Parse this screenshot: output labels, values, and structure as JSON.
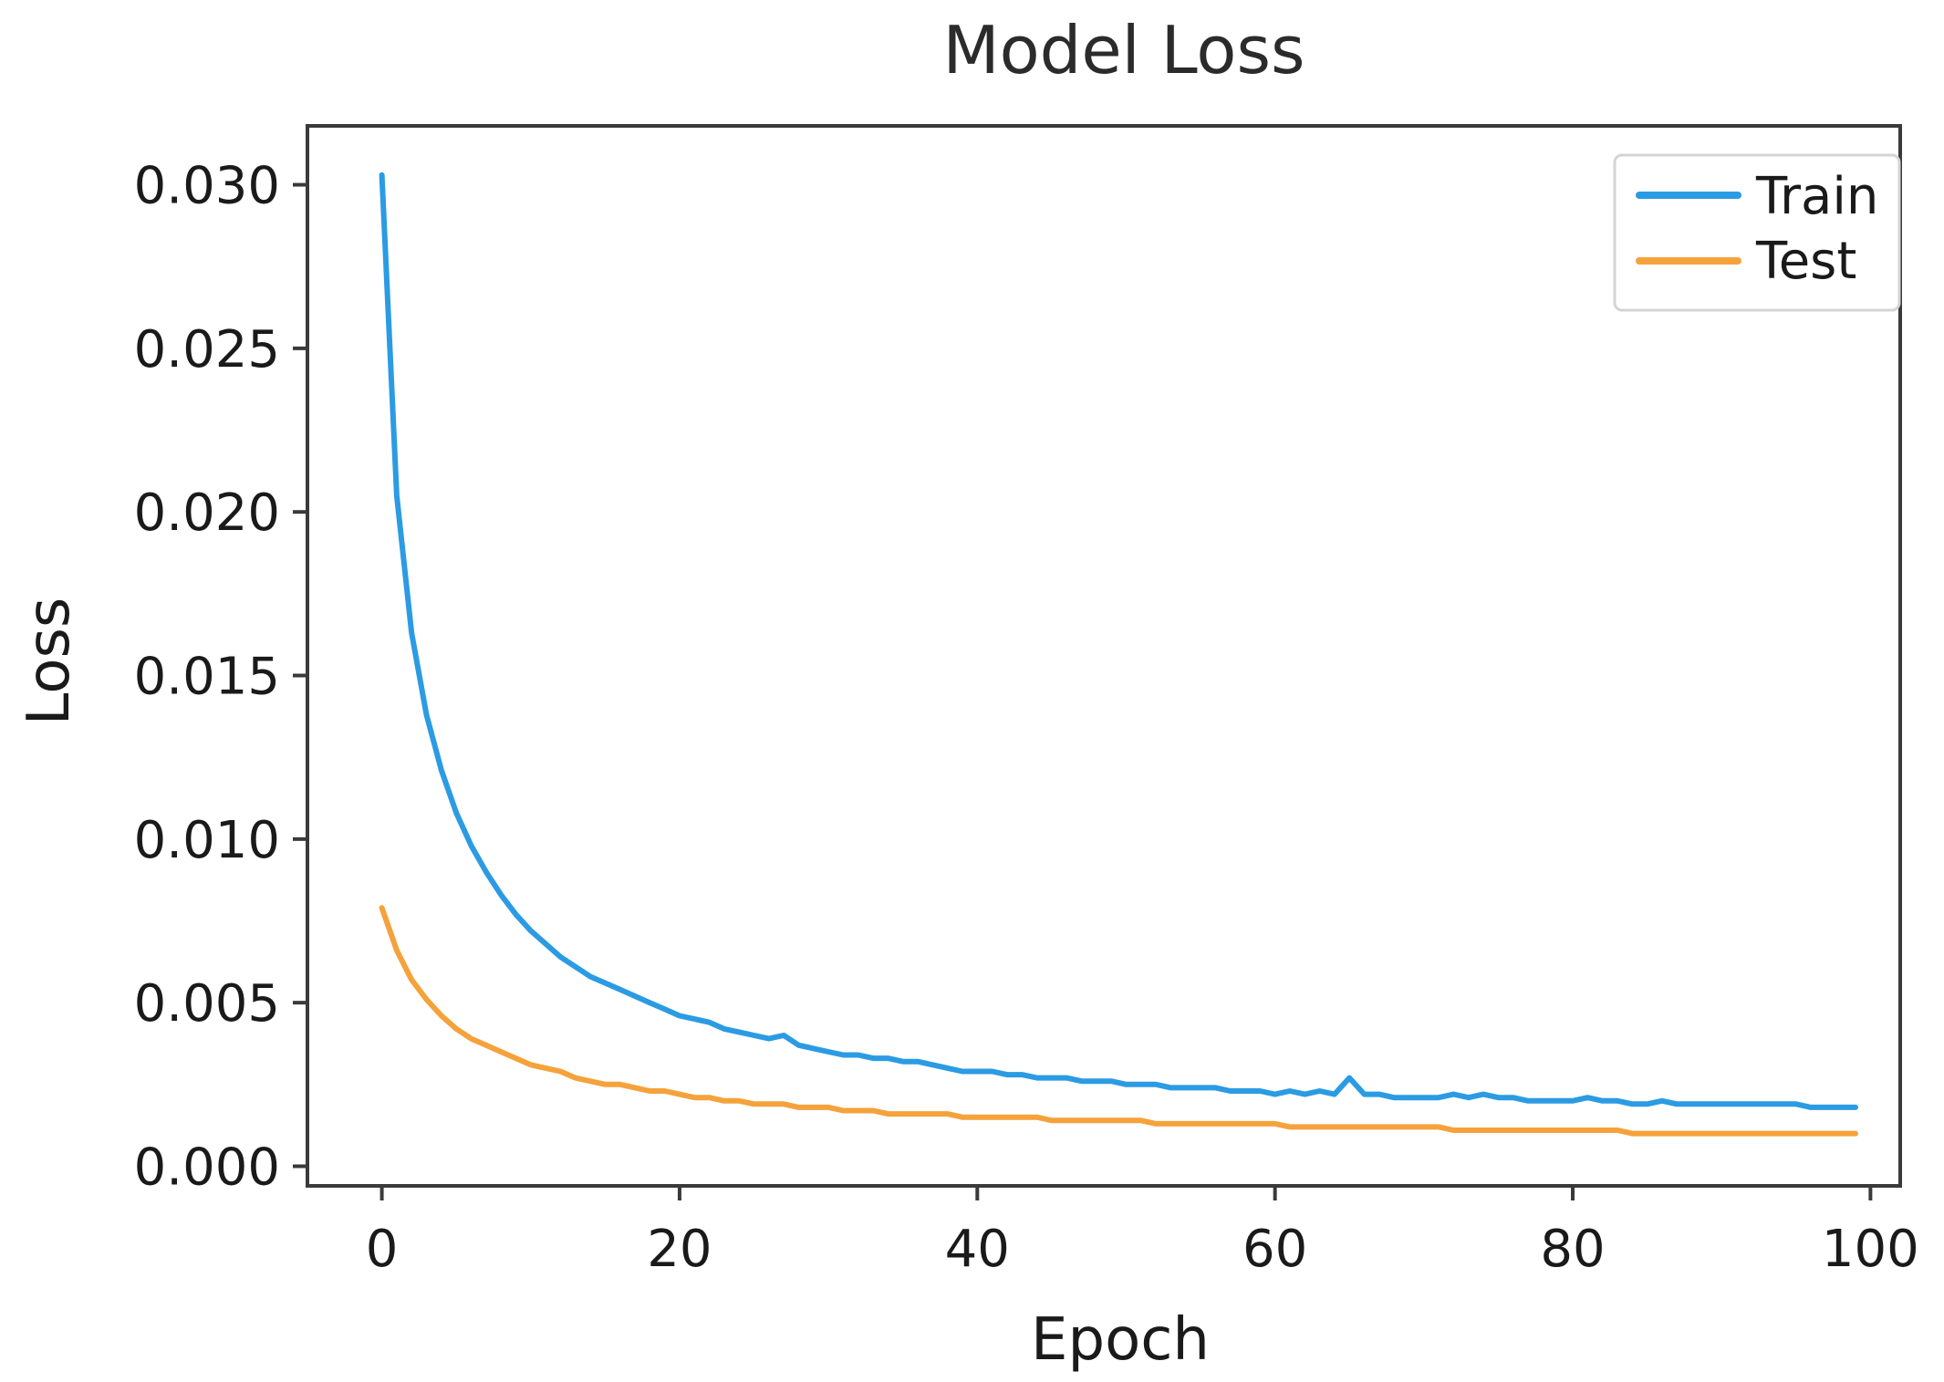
{
  "chart_data": {
    "type": "line",
    "title": "Model Loss",
    "xlabel": "Epoch",
    "ylabel": "Loss",
    "xlim": [
      -5,
      102
    ],
    "ylim": [
      -0.0006,
      0.0318
    ],
    "xticks": [
      0,
      20,
      40,
      60,
      80,
      100
    ],
    "xtick_labels": [
      "0",
      "20",
      "40",
      "60",
      "80",
      "100"
    ],
    "yticks": [
      0.0,
      0.005,
      0.01,
      0.015,
      0.02,
      0.025,
      0.03
    ],
    "ytick_labels": [
      "0.000",
      "0.005",
      "0.010",
      "0.015",
      "0.020",
      "0.025",
      "0.030"
    ],
    "grid": false,
    "legend_position": "top-right",
    "series": [
      {
        "name": "Train",
        "color": "#2b9be3",
        "x": [
          0,
          1,
          2,
          3,
          4,
          5,
          6,
          7,
          8,
          9,
          10,
          11,
          12,
          13,
          14,
          15,
          16,
          17,
          18,
          19,
          20,
          21,
          22,
          23,
          24,
          25,
          26,
          27,
          28,
          29,
          30,
          31,
          32,
          33,
          34,
          35,
          36,
          37,
          38,
          39,
          40,
          41,
          42,
          43,
          44,
          45,
          46,
          47,
          48,
          49,
          50,
          51,
          52,
          53,
          54,
          55,
          56,
          57,
          58,
          59,
          60,
          61,
          62,
          63,
          64,
          65,
          66,
          67,
          68,
          69,
          70,
          71,
          72,
          73,
          74,
          75,
          76,
          77,
          78,
          79,
          80,
          81,
          82,
          83,
          84,
          85,
          86,
          87,
          88,
          89,
          90,
          91,
          92,
          93,
          94,
          95,
          96,
          97,
          98,
          99
        ],
        "y": [
          0.0303,
          0.0205,
          0.0163,
          0.0138,
          0.0121,
          0.0108,
          0.0098,
          0.009,
          0.0083,
          0.0077,
          0.0072,
          0.0068,
          0.0064,
          0.0061,
          0.0058,
          0.0056,
          0.0054,
          0.0052,
          0.005,
          0.0048,
          0.0046,
          0.0045,
          0.0044,
          0.0042,
          0.0041,
          0.004,
          0.0039,
          0.004,
          0.0037,
          0.0036,
          0.0035,
          0.0034,
          0.0034,
          0.0033,
          0.0033,
          0.0032,
          0.0032,
          0.0031,
          0.003,
          0.0029,
          0.0029,
          0.0029,
          0.0028,
          0.0028,
          0.0027,
          0.0027,
          0.0027,
          0.0026,
          0.0026,
          0.0026,
          0.0025,
          0.0025,
          0.0025,
          0.0024,
          0.0024,
          0.0024,
          0.0024,
          0.0023,
          0.0023,
          0.0023,
          0.0022,
          0.0023,
          0.0022,
          0.0023,
          0.0022,
          0.0027,
          0.0022,
          0.0022,
          0.0021,
          0.0021,
          0.0021,
          0.0021,
          0.0022,
          0.0021,
          0.0022,
          0.0021,
          0.0021,
          0.002,
          0.002,
          0.002,
          0.002,
          0.0021,
          0.002,
          0.002,
          0.0019,
          0.0019,
          0.002,
          0.0019,
          0.0019,
          0.0019,
          0.0019,
          0.0019,
          0.0019,
          0.0019,
          0.0019,
          0.0019,
          0.0018,
          0.0018,
          0.0018,
          0.0018
        ]
      },
      {
        "name": "Test",
        "color": "#f5a23c",
        "x": [
          0,
          1,
          2,
          3,
          4,
          5,
          6,
          7,
          8,
          9,
          10,
          11,
          12,
          13,
          14,
          15,
          16,
          17,
          18,
          19,
          20,
          21,
          22,
          23,
          24,
          25,
          26,
          27,
          28,
          29,
          30,
          31,
          32,
          33,
          34,
          35,
          36,
          37,
          38,
          39,
          40,
          41,
          42,
          43,
          44,
          45,
          46,
          47,
          48,
          49,
          50,
          51,
          52,
          53,
          54,
          55,
          56,
          57,
          58,
          59,
          60,
          61,
          62,
          63,
          64,
          65,
          66,
          67,
          68,
          69,
          70,
          71,
          72,
          73,
          74,
          75,
          76,
          77,
          78,
          79,
          80,
          81,
          82,
          83,
          84,
          85,
          86,
          87,
          88,
          89,
          90,
          91,
          92,
          93,
          94,
          95,
          96,
          97,
          98,
          99
        ],
        "y": [
          0.0079,
          0.0066,
          0.0057,
          0.0051,
          0.0046,
          0.0042,
          0.0039,
          0.0037,
          0.0035,
          0.0033,
          0.0031,
          0.003,
          0.0029,
          0.0027,
          0.0026,
          0.0025,
          0.0025,
          0.0024,
          0.0023,
          0.0023,
          0.0022,
          0.0021,
          0.0021,
          0.002,
          0.002,
          0.0019,
          0.0019,
          0.0019,
          0.0018,
          0.0018,
          0.0018,
          0.0017,
          0.0017,
          0.0017,
          0.0016,
          0.0016,
          0.0016,
          0.0016,
          0.0016,
          0.0015,
          0.0015,
          0.0015,
          0.0015,
          0.0015,
          0.0015,
          0.0014,
          0.0014,
          0.0014,
          0.0014,
          0.0014,
          0.0014,
          0.0014,
          0.0013,
          0.0013,
          0.0013,
          0.0013,
          0.0013,
          0.0013,
          0.0013,
          0.0013,
          0.0013,
          0.0012,
          0.0012,
          0.0012,
          0.0012,
          0.0012,
          0.0012,
          0.0012,
          0.0012,
          0.0012,
          0.0012,
          0.0012,
          0.0011,
          0.0011,
          0.0011,
          0.0011,
          0.0011,
          0.0011,
          0.0011,
          0.0011,
          0.0011,
          0.0011,
          0.0011,
          0.0011,
          0.001,
          0.001,
          0.001,
          0.001,
          0.001,
          0.001,
          0.001,
          0.001,
          0.001,
          0.001,
          0.001,
          0.001,
          0.001,
          0.001,
          0.001,
          0.001
        ]
      }
    ]
  }
}
